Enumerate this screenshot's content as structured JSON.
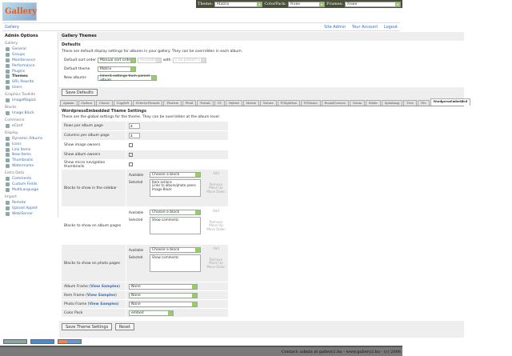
{
  "topbar": {
    "theme_label": "Theme:",
    "theme_value": "Matrix",
    "colorpack_label": "ColorPack:",
    "colorpack_value": "None",
    "frames_label": "Frames:",
    "frames_value": "None"
  },
  "logo_text": "Gallery",
  "header": {
    "breadcrumb": "Gallery",
    "links": [
      "Site Admin",
      "Your Account",
      "Logout"
    ]
  },
  "sidebar": {
    "title": "Admin Options",
    "groups": [
      {
        "name": "Gallery",
        "items": [
          "General",
          "Groups",
          "Maintenance",
          "Performance",
          "Plugins",
          "Themes",
          "URL Rewrite",
          "Users"
        ]
      },
      {
        "name": "Graphics Toolkits",
        "items": [
          "ImageMagick"
        ]
      },
      {
        "name": "Blocks",
        "items": [
          "Image Block"
        ]
      },
      {
        "name": "Commerce",
        "items": [
          "eCard"
        ]
      },
      {
        "name": "Display",
        "items": [
          "Dynamic Albums",
          "Icons",
          "Link Items",
          "New Items",
          "Thumbnails",
          "Watermarks"
        ]
      },
      {
        "name": "Extra Data",
        "items": [
          "Comments",
          "Custom Fields",
          "MultiLanguage"
        ]
      },
      {
        "name": "Import",
        "items": [
          "Remote",
          "Upload Applet",
          "Web/Server"
        ]
      }
    ],
    "current": "Themes"
  },
  "main": {
    "title": "Gallery Themes",
    "defaults": {
      "heading": "Defaults",
      "description": "These are default display settings for albums in your gallery. They can be overridden in each album.",
      "sort_label": "Default sort order",
      "sort_value": "Manual sort order",
      "sort_direction": "Ascending",
      "with_label": "with",
      "presort": "« no presort »",
      "theme_label": "Default theme",
      "theme_value": "Matrix",
      "new_albums_label": "New albums",
      "new_albums_value": "Inherit settings from parent album",
      "save_button": "Save Defaults"
    },
    "tabs": [
      "Ajaxian",
      "Carbon",
      "Classic",
      "Copyleft",
      "EclecticThreads",
      "Floatrix",
      "Fluid",
      "Portals",
      "G1",
      "Hybrid",
      "Matrix",
      "Nature",
      "PGlightbox",
      "PGtheme",
      "RoundCorners",
      "Siriux",
      "Slider",
      "Splatbang",
      "Tree",
      "Tile",
      "WordpressEmbedded"
    ],
    "active_tab": "WordpressEmbedded",
    "settings": {
      "heading": "WordpressEmbedded Theme Settings",
      "description": "These are the global settings for the theme. They can be overridden at the album level.",
      "rows_label": "Rows per album page",
      "rows_value": "3",
      "cols_label": "Columns per album page",
      "cols_value": "3",
      "image_owners_label": "Show image owners",
      "image_owners": false,
      "album_owners_label": "Show album owners",
      "album_owners": true,
      "micro_nav_label": "Show micro navigation thumbnails",
      "micro_nav": false,
      "available_label": "Available",
      "selected_label": "Selected",
      "choose": "Choose a block",
      "add": "Add",
      "remove": "Remove",
      "move_up": "Move Up",
      "move_down": "Move Down",
      "sidebar_blocks_label": "Blocks to show in the sidebar",
      "sidebar_blocks": [
        "Item actions",
        "Links to album/photo peers",
        "Image Block"
      ],
      "album_blocks_label": "Blocks to show on album pages",
      "album_blocks": [
        "Show comments"
      ],
      "photo_blocks_label": "Blocks to show on photo pages",
      "photo_blocks": [
        "Show comments"
      ],
      "album_frame_label": "Album Frame",
      "item_frame_label": "Item Frame",
      "photo_frame_label": "Photo Frame",
      "view_samples": "View Samples",
      "album_frame": "None",
      "item_frame": "None",
      "photo_frame": "None",
      "colorpack_label": "Color Pack",
      "colorpack": "embed",
      "save_button": "Save Theme Settings",
      "reset_button": "Reset"
    }
  },
  "footer": "Contact: admin at gallery2.hu - www.gallery2.hu - (c) 2006"
}
